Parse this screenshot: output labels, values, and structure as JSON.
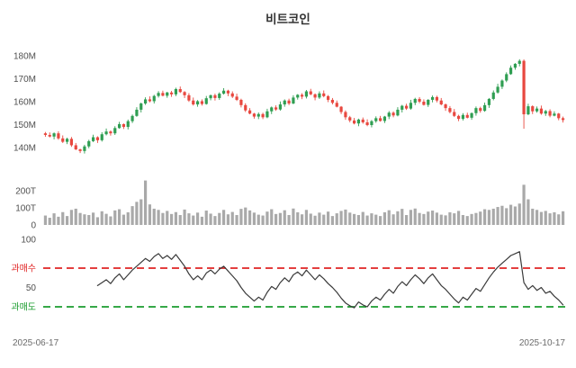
{
  "title": "비트코인",
  "x_axis": {
    "start_label": "2025-06-17",
    "end_label": "2025-10-17"
  },
  "colors": {
    "up": "#2f9e52",
    "down": "#e8483f",
    "volume": "#a9a9a9",
    "rsi_line": "#3a3a3a",
    "overbought": "#e02424",
    "oversold": "#1a9c2e",
    "axis_label": "#4f4f4f",
    "date_label": "#6b6b6b",
    "title": "#333333"
  },
  "chart_data": [
    {
      "type": "candlestick",
      "name": "price",
      "title": "비트코인",
      "x_start": "2025-06-17",
      "x_end": "2025-10-17",
      "y_ticks": [
        "140M",
        "150M",
        "160M",
        "170M",
        "180M"
      ],
      "y_tick_values": [
        140,
        150,
        160,
        170,
        180
      ],
      "ylim": [
        136,
        182
      ],
      "grid": false,
      "ohlc": [
        [
          146.2,
          146.8,
          144.7,
          145.5
        ],
        [
          145.5,
          146.6,
          144.4,
          144.8
        ],
        [
          144.8,
          146.6,
          143.6,
          146.2
        ],
        [
          146.2,
          147.1,
          143.4,
          144.0
        ],
        [
          144.0,
          145.3,
          142.0,
          142.5
        ],
        [
          142.5,
          144.3,
          141.5,
          143.8
        ],
        [
          143.8,
          144.6,
          140.3,
          141.0
        ],
        [
          141.0,
          142.0,
          138.9,
          139.2
        ],
        [
          139.2,
          139.5,
          137.6,
          138.5
        ],
        [
          138.5,
          141.2,
          137.4,
          140.5
        ],
        [
          140.5,
          143.4,
          139.7,
          142.8
        ],
        [
          142.8,
          145.6,
          142.4,
          144.5
        ],
        [
          144.5,
          144.9,
          142.0,
          143.2
        ],
        [
          143.2,
          146.7,
          142.6,
          145.8
        ],
        [
          145.8,
          148.3,
          145.3,
          147.0
        ],
        [
          147.0,
          147.5,
          145.2,
          146.2
        ],
        [
          146.2,
          149.3,
          145.5,
          148.5
        ],
        [
          148.5,
          151.2,
          148.2,
          150.2
        ],
        [
          150.2,
          150.5,
          148.1,
          149.0
        ],
        [
          149.0,
          152.2,
          147.9,
          151.5
        ],
        [
          151.5,
          154.4,
          150.7,
          153.8
        ],
        [
          153.8,
          157.6,
          153.4,
          156.5
        ],
        [
          156.5,
          159.6,
          155.3,
          159.2
        ],
        [
          159.2,
          161.9,
          158.6,
          161.0
        ],
        [
          161.0,
          162.3,
          159.7,
          160.2
        ],
        [
          160.2,
          163.0,
          159.2,
          162.5
        ],
        [
          162.5,
          164.6,
          161.8,
          163.8
        ],
        [
          163.8,
          164.8,
          162.3,
          162.6
        ],
        [
          162.6,
          164.3,
          161.7,
          164.0
        ],
        [
          164.0,
          164.7,
          162.1,
          163.2
        ],
        [
          163.2,
          166.1,
          162.4,
          165.5
        ],
        [
          165.5,
          166.6,
          163.8,
          164.2
        ],
        [
          164.2,
          164.6,
          161.6,
          162.8
        ],
        [
          162.8,
          163.7,
          159.9,
          160.5
        ],
        [
          160.5,
          161.8,
          158.3,
          158.8
        ],
        [
          158.8,
          160.7,
          157.8,
          160.2
        ],
        [
          160.2,
          161.0,
          158.3,
          159.0
        ],
        [
          159.0,
          162.5,
          158.7,
          161.5
        ],
        [
          161.5,
          163.1,
          160.6,
          162.8
        ],
        [
          162.8,
          163.5,
          160.5,
          161.6
        ],
        [
          161.6,
          164.1,
          160.8,
          163.5
        ],
        [
          163.5,
          165.9,
          163.1,
          164.8
        ],
        [
          164.8,
          165.2,
          162.4,
          163.6
        ],
        [
          163.6,
          164.5,
          161.6,
          162.2
        ],
        [
          162.2,
          163.5,
          160.3,
          160.8
        ],
        [
          160.8,
          161.3,
          157.5,
          158.5
        ],
        [
          158.5,
          159.3,
          155.5,
          156.2
        ],
        [
          156.2,
          157.2,
          154.5,
          154.8
        ],
        [
          154.8,
          155.1,
          152.6,
          153.5
        ],
        [
          153.5,
          155.3,
          152.4,
          154.6
        ],
        [
          154.6,
          155.2,
          152.4,
          153.2
        ],
        [
          153.2,
          156.9,
          152.8,
          155.8
        ],
        [
          155.8,
          157.9,
          154.6,
          157.5
        ],
        [
          157.5,
          158.4,
          156.0,
          156.6
        ],
        [
          156.6,
          160.1,
          156.1,
          158.8
        ],
        [
          158.8,
          161.0,
          157.8,
          160.5
        ],
        [
          160.5,
          161.3,
          158.5,
          159.2
        ],
        [
          159.2,
          162.8,
          158.9,
          161.8
        ],
        [
          161.8,
          163.3,
          160.9,
          163.0
        ],
        [
          163.0,
          163.7,
          161.1,
          162.2
        ],
        [
          162.2,
          165.1,
          161.4,
          164.5
        ],
        [
          164.5,
          165.6,
          162.8,
          163.2
        ],
        [
          163.2,
          163.6,
          160.6,
          161.8
        ],
        [
          161.8,
          164.5,
          161.2,
          163.6
        ],
        [
          163.6,
          164.9,
          161.9,
          162.4
        ],
        [
          162.4,
          162.9,
          159.8,
          160.8
        ],
        [
          160.8,
          161.6,
          158.8,
          159.5
        ],
        [
          159.5,
          160.5,
          157.5,
          157.8
        ],
        [
          157.8,
          158.1,
          154.6,
          155.5
        ],
        [
          155.5,
          156.2,
          152.1,
          153.2
        ],
        [
          153.2,
          153.8,
          151.0,
          151.8
        ],
        [
          151.8,
          152.9,
          150.1,
          150.5
        ],
        [
          150.5,
          152.6,
          149.3,
          152.2
        ],
        [
          152.2,
          153.1,
          150.4,
          151.0
        ],
        [
          151.0,
          152.3,
          149.3,
          149.8
        ],
        [
          149.8,
          152.0,
          148.8,
          151.5
        ],
        [
          151.5,
          153.6,
          150.8,
          152.8
        ],
        [
          152.8,
          153.8,
          151.3,
          151.6
        ],
        [
          151.6,
          153.8,
          150.7,
          153.5
        ],
        [
          153.5,
          155.9,
          152.4,
          155.2
        ],
        [
          155.2,
          155.8,
          153.2,
          154.0
        ],
        [
          154.0,
          157.6,
          153.6,
          156.5
        ],
        [
          156.5,
          158.6,
          155.3,
          158.2
        ],
        [
          158.2,
          159.1,
          156.4,
          157.0
        ],
        [
          157.0,
          160.8,
          156.5,
          159.5
        ],
        [
          159.5,
          161.7,
          158.5,
          161.2
        ],
        [
          161.2,
          162.0,
          159.3,
          160.0
        ],
        [
          160.0,
          161.0,
          158.3,
          158.6
        ],
        [
          158.6,
          161.1,
          157.7,
          160.8
        ],
        [
          160.8,
          162.7,
          159.7,
          162.0
        ],
        [
          162.0,
          162.6,
          159.7,
          160.5
        ],
        [
          160.5,
          161.6,
          158.4,
          158.8
        ],
        [
          158.8,
          159.2,
          156.0,
          157.2
        ],
        [
          157.2,
          158.1,
          154.9,
          155.5
        ],
        [
          155.5,
          156.8,
          153.3,
          153.8
        ],
        [
          153.8,
          154.3,
          151.5,
          152.5
        ],
        [
          152.5,
          155.0,
          151.8,
          154.2
        ],
        [
          154.2,
          155.2,
          152.7,
          153.0
        ],
        [
          153.0,
          155.3,
          152.1,
          155.0
        ],
        [
          155.0,
          157.9,
          153.9,
          157.2
        ],
        [
          157.2,
          157.8,
          155.2,
          156.0
        ],
        [
          156.0,
          159.6,
          155.6,
          158.5
        ],
        [
          158.5,
          161.6,
          157.3,
          161.2
        ],
        [
          161.2,
          164.9,
          160.6,
          164.0
        ],
        [
          164.0,
          167.8,
          163.5,
          166.5
        ],
        [
          166.5,
          169.7,
          165.5,
          169.2
        ],
        [
          169.2,
          172.8,
          168.5,
          172.0
        ],
        [
          172.0,
          175.8,
          171.7,
          174.8
        ],
        [
          174.8,
          176.8,
          173.9,
          176.5
        ],
        [
          176.5,
          178.5,
          175.4,
          177.8
        ],
        [
          177.8,
          178.4,
          148.2,
          154.5
        ],
        [
          154.5,
          159.1,
          154.1,
          158.0
        ],
        [
          158.0,
          158.4,
          154.6,
          155.8
        ],
        [
          155.8,
          157.9,
          155.2,
          157.0
        ],
        [
          157.0,
          158.3,
          154.3,
          154.8
        ],
        [
          154.8,
          156.4,
          153.8,
          155.9
        ],
        [
          155.9,
          156.7,
          153.2,
          153.9
        ],
        [
          153.9,
          155.8,
          153.6,
          154.8
        ],
        [
          154.8,
          155.1,
          151.9,
          152.8
        ],
        [
          152.8,
          153.5,
          150.9,
          152.0
        ]
      ]
    },
    {
      "type": "bar",
      "name": "volume",
      "y_ticks": [
        "0",
        "100T",
        "200T"
      ],
      "y_tick_values": [
        0,
        100,
        200
      ],
      "ylim": [
        0,
        270
      ],
      "grid": false,
      "values": [
        55,
        42,
        68,
        48,
        75,
        52,
        88,
        95,
        70,
        62,
        58,
        72,
        45,
        80,
        65,
        50,
        85,
        92,
        60,
        74,
        110,
        135,
        150,
        260,
        120,
        95,
        88,
        70,
        82,
        64,
        75,
        58,
        90,
        68,
        55,
        72,
        48,
        84,
        66,
        52,
        70,
        88,
        62,
        76,
        58,
        94,
        102,
        85,
        72,
        60,
        55,
        78,
        92,
        64,
        70,
        86,
        58,
        96,
        74,
        62,
        88,
        66,
        54,
        72,
        60,
        78,
        52,
        68,
        82,
        90,
        72,
        64,
        58,
        76,
        55,
        68,
        60,
        52,
        74,
        86,
        62,
        80,
        94,
        58,
        88,
        96,
        70,
        64,
        78,
        84,
        72,
        60,
        56,
        74,
        68,
        82,
        58,
        52,
        64,
        70,
        78,
        92,
        88,
        95,
        105,
        112,
        98,
        118,
        108,
        125,
        235,
        150,
        95,
        88,
        76,
        82,
        68,
        74,
        62,
        80
      ]
    },
    {
      "type": "line",
      "name": "rsi",
      "y_ticks": [
        "100",
        "50"
      ],
      "y_tick_values": [
        100,
        50
      ],
      "ylim": [
        0,
        100
      ],
      "grid": false,
      "overbought": {
        "label": "과매수",
        "value": 70
      },
      "oversold": {
        "label": "과매도",
        "value": 30
      },
      "values": [
        null,
        null,
        null,
        null,
        null,
        null,
        null,
        null,
        null,
        null,
        null,
        null,
        52,
        55,
        58,
        54,
        60,
        64,
        58,
        63,
        68,
        72,
        76,
        80,
        77,
        82,
        85,
        80,
        83,
        79,
        84,
        78,
        72,
        64,
        58,
        62,
        58,
        65,
        68,
        64,
        69,
        72,
        67,
        62,
        57,
        50,
        44,
        40,
        36,
        40,
        37,
        45,
        51,
        48,
        55,
        60,
        56,
        63,
        66,
        62,
        68,
        63,
        58,
        63,
        59,
        54,
        50,
        45,
        39,
        34,
        31,
        29,
        35,
        32,
        30,
        36,
        40,
        37,
        43,
        48,
        44,
        51,
        56,
        52,
        58,
        63,
        59,
        54,
        60,
        64,
        58,
        52,
        48,
        43,
        38,
        34,
        40,
        37,
        43,
        49,
        46,
        53,
        60,
        66,
        71,
        75,
        79,
        83,
        85,
        87,
        55,
        48,
        52,
        47,
        50,
        44,
        46,
        41,
        37,
        32
      ]
    }
  ]
}
